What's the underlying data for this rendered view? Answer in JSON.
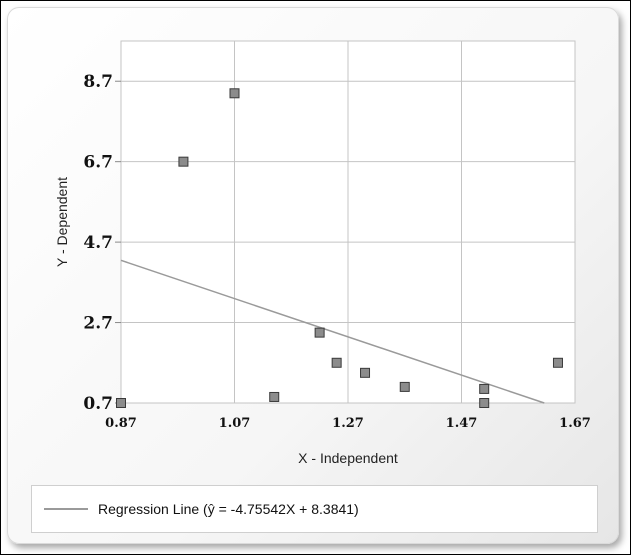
{
  "chart_data": {
    "type": "scatter",
    "title": "",
    "xlabel": "X - Independent",
    "ylabel": "Y - Dependent",
    "xlim": [
      0.87,
      1.67
    ],
    "ylim": [
      0.7,
      9.7
    ],
    "x_ticks": [
      "0.87",
      "1.07",
      "1.27",
      "1.47",
      "1.67"
    ],
    "y_ticks": [
      "0.7",
      "2.7",
      "4.7",
      "6.7",
      "8.7"
    ],
    "grid": true,
    "legend_position": "bottom",
    "points": [
      {
        "x": 0.87,
        "y": 0.7
      },
      {
        "x": 0.98,
        "y": 6.7
      },
      {
        "x": 1.07,
        "y": 8.4
      },
      {
        "x": 1.14,
        "y": 0.85
      },
      {
        "x": 1.22,
        "y": 2.45
      },
      {
        "x": 1.25,
        "y": 1.7
      },
      {
        "x": 1.3,
        "y": 1.45
      },
      {
        "x": 1.37,
        "y": 1.1
      },
      {
        "x": 1.51,
        "y": 1.05
      },
      {
        "x": 1.51,
        "y": 0.7
      },
      {
        "x": 1.64,
        "y": 1.7
      }
    ],
    "regression": {
      "label": "Regression Line (ŷ = -4.75542X + 8.3841)",
      "slope": -4.75542,
      "intercept": 8.3841
    },
    "colors": {
      "point_fill": "#8c8c8c",
      "point_stroke": "#3a3a3a",
      "line": "#9a9a9a",
      "grid": "#c4c4c4"
    }
  }
}
